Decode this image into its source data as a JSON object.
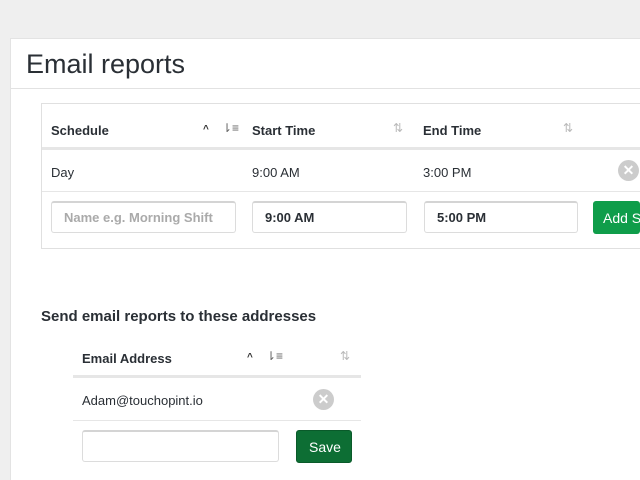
{
  "page": {
    "title": "Email reports"
  },
  "schedule_table": {
    "headers": [
      {
        "label": "Schedule",
        "sorted": "ascending"
      },
      {
        "label": "Start Time"
      },
      {
        "label": "End Time"
      }
    ],
    "rows": [
      {
        "schedule": "Day",
        "start": "9:00 AM",
        "end": "3:00 PM"
      }
    ],
    "new_row": {
      "name_placeholder": "Name e.g. Morning Shift",
      "name_value": "",
      "start_value": "9:00 AM",
      "end_value": "5:00 PM",
      "add_label": "Add S"
    }
  },
  "email_section": {
    "heading": "Send email reports to these addresses",
    "headers": [
      {
        "label": "Email Address",
        "sorted": "ascending"
      }
    ],
    "rows": [
      {
        "email": "Adam@touchopint.io"
      }
    ],
    "new_row": {
      "email_value": "",
      "save_label": "Save"
    }
  },
  "icons": {
    "sort_asc": "chevron-up-icon",
    "sort": "sort-icon",
    "remove": "remove-circle-icon"
  },
  "colors": {
    "add_button": "#0f9d4a",
    "save_button": "#0d6e34"
  }
}
